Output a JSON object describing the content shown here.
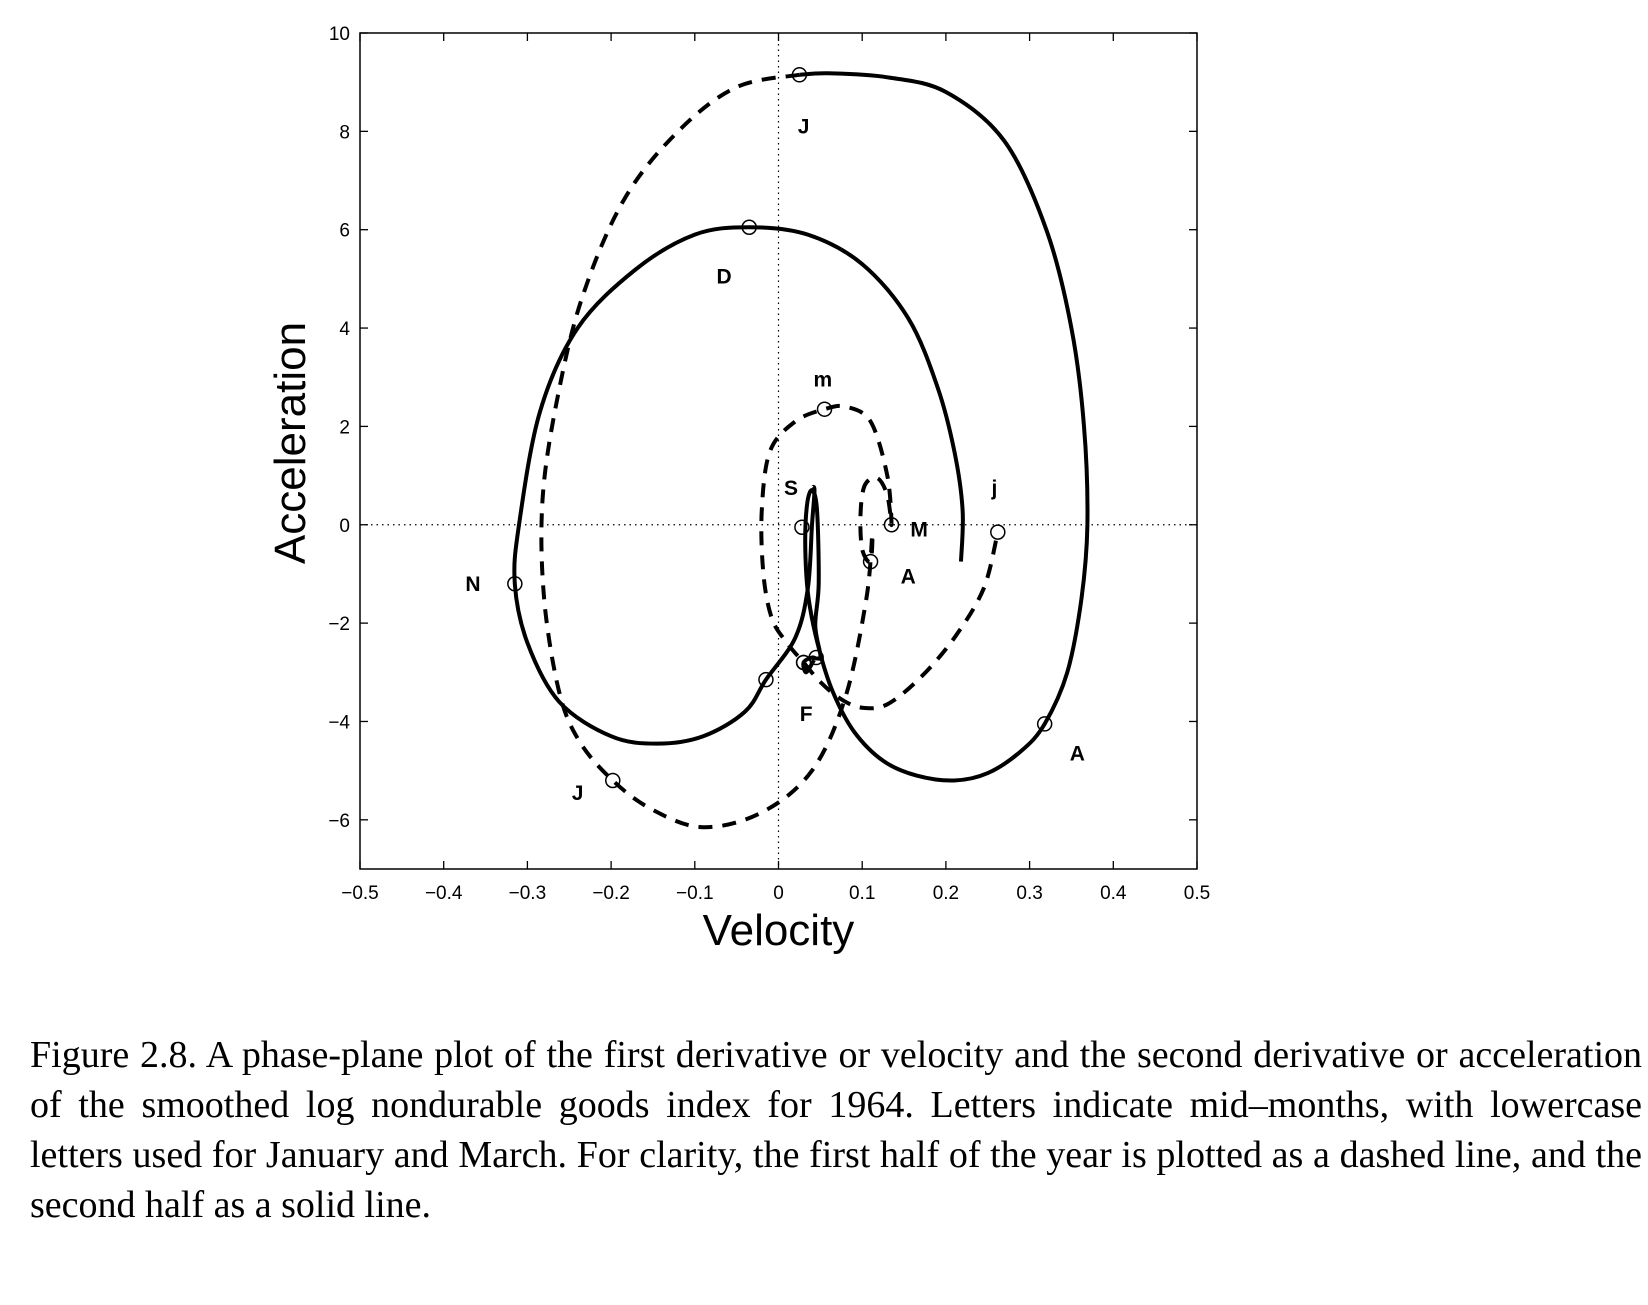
{
  "chart_data": {
    "type": "line",
    "title": "",
    "xlabel": "Velocity",
    "ylabel": "Acceleration",
    "xlim": [
      -0.5,
      0.5
    ],
    "ylim": [
      -7,
      10
    ],
    "xticks": [
      -0.5,
      -0.4,
      -0.3,
      -0.2,
      -0.1,
      0,
      0.1,
      0.2,
      0.3,
      0.4,
      0.5
    ],
    "xtick_labels": [
      "−0.5",
      "−0.4",
      "−0.3",
      "−0.2",
      "−0.1",
      "0",
      "0.1",
      "0.2",
      "0.3",
      "0.4",
      "0.5"
    ],
    "yticks": [
      -6,
      -4,
      -2,
      0,
      2,
      4,
      6,
      8,
      10
    ],
    "ytick_labels": [
      "−6",
      "−4",
      "−2",
      "0",
      "2",
      "4",
      "6",
      "8",
      "10"
    ],
    "reference_lines": {
      "x": 0,
      "y": 0,
      "style": "dotted"
    },
    "series": [
      {
        "style": "dashed",
        "color": "#000000",
        "points": [
          [
            0.025,
            9.15
          ],
          [
            -0.05,
            8.9
          ],
          [
            -0.12,
            8.0
          ],
          [
            -0.185,
            6.6
          ],
          [
            -0.235,
            4.6
          ],
          [
            -0.265,
            2.5
          ],
          [
            -0.282,
            0.5
          ],
          [
            -0.28,
            -1.5
          ],
          [
            -0.262,
            -3.4
          ],
          [
            -0.238,
            -4.4
          ],
          [
            -0.198,
            -5.2
          ],
          [
            -0.15,
            -5.8
          ],
          [
            -0.09,
            -6.15
          ],
          [
            -0.02,
            -5.85
          ],
          [
            0.04,
            -5.0
          ],
          [
            0.08,
            -3.5
          ],
          [
            0.105,
            -1.5
          ],
          [
            0.112,
            -0.2
          ],
          [
            0.11,
            -0.75
          ],
          [
            0.1,
            -0.5
          ],
          [
            0.098,
            0.2
          ],
          [
            0.103,
            0.8
          ],
          [
            0.118,
            0.95
          ],
          [
            0.13,
            0.6
          ],
          [
            0.135,
            0.0
          ],
          [
            0.13,
            1.0
          ],
          [
            0.11,
            2.1
          ],
          [
            0.08,
            2.4
          ],
          [
            0.055,
            2.35
          ],
          [
            0.02,
            2.1
          ],
          [
            -0.01,
            1.5
          ],
          [
            -0.02,
            0.3
          ],
          [
            -0.018,
            -1.0
          ],
          [
            -0.008,
            -1.9
          ],
          [
            0.01,
            -2.4
          ],
          [
            0.03,
            -2.8
          ],
          [
            0.05,
            -3.2
          ],
          [
            0.075,
            -3.55
          ],
          [
            0.1,
            -3.72
          ],
          [
            0.13,
            -3.65
          ],
          [
            0.17,
            -3.1
          ],
          [
            0.21,
            -2.3
          ],
          [
            0.245,
            -1.3
          ],
          [
            0.262,
            -0.15
          ]
        ]
      },
      {
        "style": "solid",
        "color": "#000000",
        "points": [
          [
            0.0425,
            -2.75
          ],
          [
            0.033,
            -3.0
          ],
          [
            0.03,
            -2.8
          ],
          [
            0.04,
            -2.7
          ],
          [
            0.046,
            -2.72
          ],
          [
            0.05,
            -2.65
          ],
          [
            0.044,
            -2.05
          ],
          [
            0.048,
            -1.2
          ],
          [
            0.046,
            0.3
          ],
          [
            0.04,
            0.7
          ],
          [
            0.034,
            0.4
          ],
          [
            0.032,
            -0.5
          ],
          [
            0.036,
            -1.5
          ],
          [
            0.048,
            -2.5
          ],
          [
            0.065,
            -3.4
          ],
          [
            0.09,
            -4.2
          ],
          [
            0.125,
            -4.8
          ],
          [
            0.165,
            -5.1
          ],
          [
            0.21,
            -5.2
          ],
          [
            0.25,
            -5.05
          ],
          [
            0.29,
            -4.6
          ],
          [
            0.318,
            -4.05
          ],
          [
            0.345,
            -3.0
          ],
          [
            0.362,
            -1.5
          ],
          [
            0.369,
            0.0
          ],
          [
            0.365,
            2.0
          ],
          [
            0.35,
            4.0
          ],
          [
            0.32,
            6.0
          ],
          [
            0.27,
            7.8
          ],
          [
            0.2,
            8.8
          ],
          [
            0.13,
            9.1
          ],
          [
            0.06,
            9.18
          ],
          [
            0.025,
            9.15
          ]
        ]
      },
      {
        "style": "solid",
        "color": "#000000",
        "points": [
          [
            0.218,
            -0.75
          ],
          [
            0.22,
            0.3
          ],
          [
            0.21,
            1.5
          ],
          [
            0.19,
            2.8
          ],
          [
            0.155,
            4.2
          ],
          [
            0.1,
            5.3
          ],
          [
            0.035,
            5.9
          ],
          [
            -0.035,
            6.05
          ],
          [
            -0.1,
            5.9
          ],
          [
            -0.17,
            5.2
          ],
          [
            -0.24,
            4.0
          ],
          [
            -0.285,
            2.3
          ],
          [
            -0.31,
            0.0
          ],
          [
            -0.315,
            -1.2
          ],
          [
            -0.3,
            -2.4
          ],
          [
            -0.262,
            -3.6
          ],
          [
            -0.2,
            -4.3
          ],
          [
            -0.145,
            -4.45
          ],
          [
            -0.09,
            -4.3
          ],
          [
            -0.04,
            -3.8
          ],
          [
            -0.015,
            -3.15
          ],
          [
            0.02,
            -2.3
          ],
          [
            0.035,
            -1.3
          ],
          [
            0.04,
            0.0
          ],
          [
            0.043,
            0.7
          ],
          [
            0.04,
            0.75
          ]
        ]
      }
    ],
    "markers": [
      {
        "x": 0.025,
        "y": 9.15,
        "label": "J",
        "lx": 0.03,
        "ly": 8.1
      },
      {
        "x": 0.262,
        "y": -0.15,
        "label": "j",
        "lx": 0.258,
        "ly": 0.75
      },
      {
        "x": -0.035,
        "y": 6.05,
        "label": "D",
        "lx": -0.065,
        "ly": 5.05
      },
      {
        "x": 0.055,
        "y": 2.35,
        "label": "m",
        "lx": 0.053,
        "ly": 2.95
      },
      {
        "x": 0.028,
        "y": -0.05,
        "label": "S",
        "lx": 0.015,
        "ly": 0.75
      },
      {
        "x": 0.135,
        "y": 0.0,
        "label": "M",
        "lx": 0.168,
        "ly": -0.1
      },
      {
        "x": 0.11,
        "y": -0.75,
        "label": "A",
        "lx": 0.155,
        "ly": -1.05
      },
      {
        "x": -0.315,
        "y": -1.2,
        "label": "N",
        "lx": -0.365,
        "ly": -1.2
      },
      {
        "x": 0.045,
        "y": -2.7,
        "label": "",
        "lx": 0,
        "ly": 0
      },
      {
        "x": 0.03,
        "y": -2.8,
        "label": "",
        "lx": 0,
        "ly": 0
      },
      {
        "x": -0.015,
        "y": -3.15,
        "label": "",
        "lx": 0,
        "ly": 0
      },
      {
        "x": 0.03,
        "y": -2.8,
        "label": "F",
        "lx": 0.033,
        "ly": -3.85
      },
      {
        "x": 0.318,
        "y": -4.05,
        "label": "A",
        "lx": 0.357,
        "ly": -4.65
      },
      {
        "x": -0.198,
        "y": -5.2,
        "label": "J",
        "lx": -0.24,
        "ly": -5.45
      }
    ],
    "grid": false,
    "legend": "none"
  },
  "caption": "Figure 2.8. A phase-plane plot of the first derivative or velocity and the second derivative or acceleration of the smoothed log nondurable goods index for 1964. Letters indicate mid–months, with lowercase letters used for January and March. For clarity, the first half of the year is plotted as a dashed line, and the second half as a solid line."
}
